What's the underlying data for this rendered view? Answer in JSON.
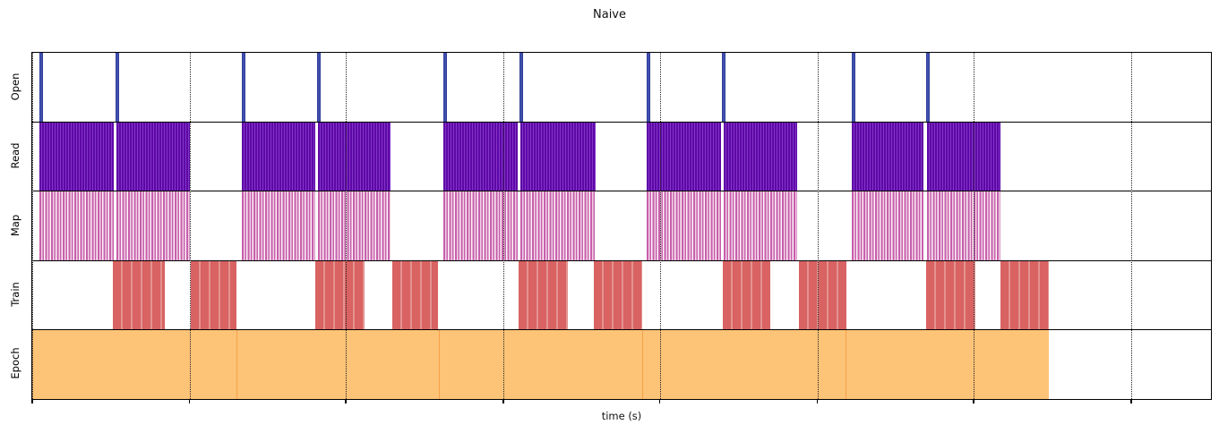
{
  "title": "Naive",
  "xlabel": "time (s)",
  "colors": {
    "open_spike": "#4150ae",
    "read_stripe": "#6a0dad",
    "map_stripe": "#c75fab",
    "train_block": "#d96363",
    "epoch_band": "#fdc377",
    "epoch_divider": "#f7a24b",
    "gridline": "#222222",
    "axis": "#000000"
  },
  "chart_data": {
    "type": "timeline",
    "title": "Naive",
    "xlabel": "time (s)",
    "x_axis": {
      "min": 0,
      "max": 1318,
      "tick_labels_visible": false,
      "gridline_style": "dotted",
      "gridline_positions": [
        0,
        176,
        351,
        527,
        702,
        878,
        1053,
        1229
      ]
    },
    "rows": [
      {
        "label": "Open",
        "type": "event-spikes",
        "color": "#4150ae",
        "spike_width": 4,
        "events": [
          8,
          93,
          234,
          318,
          460,
          545,
          687,
          771,
          916,
          1000
        ]
      },
      {
        "label": "Read",
        "type": "interval-bars",
        "style": "dense-vertical-stripes",
        "color": "#6a0dad",
        "intervals": [
          [
            8,
            91
          ],
          [
            94,
            176
          ],
          [
            234,
            316
          ],
          [
            319,
            401
          ],
          [
            460,
            543
          ],
          [
            546,
            630
          ],
          [
            687,
            770
          ],
          [
            773,
            855
          ],
          [
            916,
            997
          ],
          [
            1001,
            1083
          ]
        ]
      },
      {
        "label": "Map",
        "type": "interval-bars",
        "style": "sparse-vertical-stripes",
        "color": "#c75fab",
        "intervals": [
          [
            8,
            91
          ],
          [
            94,
            176
          ],
          [
            234,
            316
          ],
          [
            319,
            401
          ],
          [
            460,
            543
          ],
          [
            546,
            630
          ],
          [
            687,
            770
          ],
          [
            773,
            855
          ],
          [
            916,
            997
          ],
          [
            1001,
            1083
          ]
        ]
      },
      {
        "label": "Train",
        "type": "interval-bars",
        "style": "striped-blocks",
        "color": "#d96363",
        "intervals": [
          [
            90,
            148
          ],
          [
            177,
            228
          ],
          [
            316,
            372
          ],
          [
            403,
            454
          ],
          [
            544,
            599
          ],
          [
            628,
            682
          ],
          [
            772,
            825
          ],
          [
            857,
            910
          ],
          [
            1000,
            1055
          ],
          [
            1083,
            1137
          ]
        ]
      },
      {
        "label": "Epoch",
        "type": "interval-bars",
        "style": "solid-band-with-dividers",
        "color": "#fdc377",
        "divider_color": "#f7a24b",
        "intervals": [
          [
            0,
            228
          ],
          [
            228,
            455
          ],
          [
            455,
            682
          ],
          [
            682,
            909
          ],
          [
            909,
            1137
          ]
        ]
      }
    ]
  }
}
